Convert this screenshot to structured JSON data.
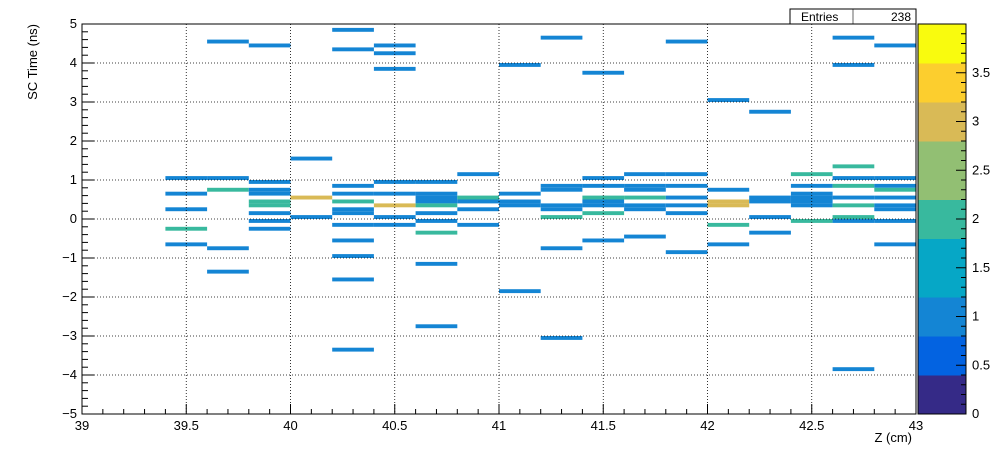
{
  "chart_data": {
    "type": "heatmap",
    "xlabel": "Z (cm)",
    "ylabel": "SC Time (ns)",
    "xlim": [
      39,
      43
    ],
    "ylim": [
      -5,
      5
    ],
    "zlim": [
      0,
      4
    ],
    "x_ticks": [
      {
        "v": 39,
        "label": "39"
      },
      {
        "v": 39.5,
        "label": "39.5"
      },
      {
        "v": 40,
        "label": "40"
      },
      {
        "v": 40.5,
        "label": "40.5"
      },
      {
        "v": 41,
        "label": "41"
      },
      {
        "v": 41.5,
        "label": "41.5"
      },
      {
        "v": 42,
        "label": "42"
      },
      {
        "v": 42.5,
        "label": "42.5"
      },
      {
        "v": 43,
        "label": "43"
      }
    ],
    "y_ticks": [
      {
        "v": -5,
        "label": "−5"
      },
      {
        "v": -4,
        "label": "−4"
      },
      {
        "v": -3,
        "label": "−3"
      },
      {
        "v": -2,
        "label": "−2"
      },
      {
        "v": -1,
        "label": "−1"
      },
      {
        "v": 0,
        "label": "0"
      },
      {
        "v": 1,
        "label": "1"
      },
      {
        "v": 2,
        "label": "2"
      },
      {
        "v": 3,
        "label": "3"
      },
      {
        "v": 4,
        "label": "4"
      },
      {
        "v": 5,
        "label": "5"
      }
    ],
    "z_ticks": [
      {
        "v": 0,
        "label": "0"
      },
      {
        "v": 0.5,
        "label": "0.5"
      },
      {
        "v": 1,
        "label": "1"
      },
      {
        "v": 1.5,
        "label": "1.5"
      },
      {
        "v": 2,
        "label": "2"
      },
      {
        "v": 2.5,
        "label": "2.5"
      },
      {
        "v": 3,
        "label": "3"
      },
      {
        "v": 3.5,
        "label": "3.5"
      }
    ],
    "grid": true,
    "palette": [
      "#352a87",
      "#0363e1",
      "#1485d4",
      "#06a7c6",
      "#38b99e",
      "#92bf73",
      "#d9ba56",
      "#fcce2e",
      "#f9fb0e"
    ],
    "stats": {
      "label": "Entries",
      "value": "238"
    },
    "bin_width": 0.2,
    "bin_height": 0.1,
    "cells": [
      {
        "x": 39.4,
        "y": 1.05,
        "z": 1
      },
      {
        "x": 39.4,
        "y": 0.65,
        "z": 1
      },
      {
        "x": 39.4,
        "y": 0.25,
        "z": 1
      },
      {
        "x": 39.4,
        "y": -0.25,
        "z": 2
      },
      {
        "x": 39.4,
        "y": -0.65,
        "z": 1
      },
      {
        "x": 39.6,
        "y": 1.05,
        "z": 1
      },
      {
        "x": 39.6,
        "y": 0.75,
        "z": 2
      },
      {
        "x": 39.6,
        "y": -0.75,
        "z": 1
      },
      {
        "x": 39.6,
        "y": -1.35,
        "z": 1
      },
      {
        "x": 39.6,
        "y": 4.55,
        "z": 1
      },
      {
        "x": 39.8,
        "y": 4.45,
        "z": 1
      },
      {
        "x": 39.8,
        "y": 0.95,
        "z": 1
      },
      {
        "x": 39.8,
        "y": 0.75,
        "z": 1
      },
      {
        "x": 39.8,
        "y": 0.65,
        "z": 1
      },
      {
        "x": 39.8,
        "y": 0.45,
        "z": 2
      },
      {
        "x": 39.8,
        "y": 0.35,
        "z": 2
      },
      {
        "x": 39.8,
        "y": 0.15,
        "z": 1
      },
      {
        "x": 39.8,
        "y": -0.05,
        "z": 1
      },
      {
        "x": 39.8,
        "y": -0.25,
        "z": 1
      },
      {
        "x": 40,
        "y": 1.55,
        "z": 1
      },
      {
        "x": 40,
        "y": 0.55,
        "z": 3
      },
      {
        "x": 40,
        "y": 0.05,
        "z": 1
      },
      {
        "x": 40.2,
        "y": 4.85,
        "z": 1
      },
      {
        "x": 40.2,
        "y": 4.35,
        "z": 1
      },
      {
        "x": 40.2,
        "y": 0.85,
        "z": 1
      },
      {
        "x": 40.2,
        "y": 0.65,
        "z": 1
      },
      {
        "x": 40.2,
        "y": 0.45,
        "z": 2
      },
      {
        "x": 40.2,
        "y": 0.25,
        "z": 1
      },
      {
        "x": 40.2,
        "y": 0.15,
        "z": 1
      },
      {
        "x": 40.2,
        "y": -0.15,
        "z": 1
      },
      {
        "x": 40.2,
        "y": -0.55,
        "z": 1
      },
      {
        "x": 40.2,
        "y": -0.95,
        "z": 1
      },
      {
        "x": 40.2,
        "y": -1.55,
        "z": 1
      },
      {
        "x": 40.2,
        "y": -3.35,
        "z": 1
      },
      {
        "x": 40.4,
        "y": 4.45,
        "z": 1
      },
      {
        "x": 40.4,
        "y": 4.25,
        "z": 1
      },
      {
        "x": 40.4,
        "y": 3.85,
        "z": 1
      },
      {
        "x": 40.4,
        "y": 0.95,
        "z": 1
      },
      {
        "x": 40.4,
        "y": 0.65,
        "z": 1
      },
      {
        "x": 40.4,
        "y": 0.35,
        "z": 3
      },
      {
        "x": 40.4,
        "y": 0.05,
        "z": 1
      },
      {
        "x": 40.4,
        "y": -0.15,
        "z": 1
      },
      {
        "x": 40.6,
        "y": 0.95,
        "z": 1
      },
      {
        "x": 40.6,
        "y": 0.65,
        "z": 1
      },
      {
        "x": 40.6,
        "y": 0.55,
        "z": 1
      },
      {
        "x": 40.6,
        "y": 0.45,
        "z": 1
      },
      {
        "x": 40.6,
        "y": 0.35,
        "z": 2
      },
      {
        "x": 40.6,
        "y": 0.15,
        "z": 1
      },
      {
        "x": 40.6,
        "y": -0.05,
        "z": 1
      },
      {
        "x": 40.6,
        "y": -0.35,
        "z": 2
      },
      {
        "x": 40.6,
        "y": -1.15,
        "z": 1
      },
      {
        "x": 40.6,
        "y": -2.75,
        "z": 1
      },
      {
        "x": 40.8,
        "y": 1.15,
        "z": 1
      },
      {
        "x": 40.8,
        "y": 0.55,
        "z": 2
      },
      {
        "x": 40.8,
        "y": 0.45,
        "z": 1
      },
      {
        "x": 40.8,
        "y": 0.25,
        "z": 1
      },
      {
        "x": 40.8,
        "y": -0.15,
        "z": 1
      },
      {
        "x": 41,
        "y": 3.95,
        "z": 1
      },
      {
        "x": 41,
        "y": 0.65,
        "z": 1
      },
      {
        "x": 41,
        "y": 0.45,
        "z": 1
      },
      {
        "x": 41,
        "y": 0.35,
        "z": 1
      },
      {
        "x": 41,
        "y": -1.85,
        "z": 1
      },
      {
        "x": 41.2,
        "y": 4.65,
        "z": 1
      },
      {
        "x": 41.2,
        "y": 0.85,
        "z": 1
      },
      {
        "x": 41.2,
        "y": 0.75,
        "z": 1
      },
      {
        "x": 41.2,
        "y": 0.35,
        "z": 1
      },
      {
        "x": 41.2,
        "y": 0.25,
        "z": 1
      },
      {
        "x": 41.2,
        "y": 0.05,
        "z": 2
      },
      {
        "x": 41.2,
        "y": -0.75,
        "z": 1
      },
      {
        "x": 41.2,
        "y": -3.05,
        "z": 1
      },
      {
        "x": 41.4,
        "y": 3.75,
        "z": 1
      },
      {
        "x": 41.4,
        "y": 1.05,
        "z": 1
      },
      {
        "x": 41.4,
        "y": 0.85,
        "z": 1
      },
      {
        "x": 41.4,
        "y": 0.55,
        "z": 2
      },
      {
        "x": 41.4,
        "y": 0.45,
        "z": 1
      },
      {
        "x": 41.4,
        "y": 0.35,
        "z": 1
      },
      {
        "x": 41.4,
        "y": 0.15,
        "z": 2
      },
      {
        "x": 41.4,
        "y": -0.55,
        "z": 1
      },
      {
        "x": 41.6,
        "y": 1.15,
        "z": 1
      },
      {
        "x": 41.6,
        "y": 0.85,
        "z": 1
      },
      {
        "x": 41.6,
        "y": 0.75,
        "z": 1
      },
      {
        "x": 41.6,
        "y": 0.55,
        "z": 2
      },
      {
        "x": 41.6,
        "y": 0.35,
        "z": 1
      },
      {
        "x": 41.6,
        "y": 0.25,
        "z": 1
      },
      {
        "x": 41.6,
        "y": -0.45,
        "z": 1
      },
      {
        "x": 41.8,
        "y": 4.55,
        "z": 1
      },
      {
        "x": 41.8,
        "y": 1.15,
        "z": 1
      },
      {
        "x": 41.8,
        "y": 0.85,
        "z": 1
      },
      {
        "x": 41.8,
        "y": 0.55,
        "z": 1
      },
      {
        "x": 41.8,
        "y": 0.35,
        "z": 1
      },
      {
        "x": 41.8,
        "y": 0.15,
        "z": 1
      },
      {
        "x": 41.8,
        "y": -0.85,
        "z": 1
      },
      {
        "x": 42,
        "y": 3.05,
        "z": 1
      },
      {
        "x": 42,
        "y": 0.75,
        "z": 1
      },
      {
        "x": 42,
        "y": 0.45,
        "z": 3
      },
      {
        "x": 42,
        "y": 0.35,
        "z": 3
      },
      {
        "x": 42,
        "y": -0.15,
        "z": 2
      },
      {
        "x": 42,
        "y": -0.65,
        "z": 1
      },
      {
        "x": 42.2,
        "y": 2.75,
        "z": 1
      },
      {
        "x": 42.2,
        "y": 0.55,
        "z": 1
      },
      {
        "x": 42.2,
        "y": 0.45,
        "z": 1
      },
      {
        "x": 42.2,
        "y": 0.05,
        "z": 1
      },
      {
        "x": 42.2,
        "y": -0.35,
        "z": 1
      },
      {
        "x": 42.4,
        "y": 1.15,
        "z": 2
      },
      {
        "x": 42.4,
        "y": 0.85,
        "z": 1
      },
      {
        "x": 42.4,
        "y": 0.65,
        "z": 1
      },
      {
        "x": 42.4,
        "y": 0.55,
        "z": 1
      },
      {
        "x": 42.4,
        "y": 0.45,
        "z": 1
      },
      {
        "x": 42.4,
        "y": 0.35,
        "z": 1
      },
      {
        "x": 42.4,
        "y": -0.05,
        "z": 2
      },
      {
        "x": 42.6,
        "y": 4.65,
        "z": 1
      },
      {
        "x": 42.6,
        "y": 3.95,
        "z": 1
      },
      {
        "x": 42.6,
        "y": 1.35,
        "z": 2
      },
      {
        "x": 42.6,
        "y": 1.05,
        "z": 1
      },
      {
        "x": 42.6,
        "y": 0.85,
        "z": 2
      },
      {
        "x": 42.6,
        "y": 0.55,
        "z": 1
      },
      {
        "x": 42.6,
        "y": 0.35,
        "z": 2
      },
      {
        "x": 42.6,
        "y": 0.05,
        "z": 2
      },
      {
        "x": 42.6,
        "y": -0.05,
        "z": 1
      },
      {
        "x": 42.6,
        "y": -3.85,
        "z": 1
      },
      {
        "x": 42.8,
        "y": 4.45,
        "z": 1
      },
      {
        "x": 42.8,
        "y": 1.05,
        "z": 1
      },
      {
        "x": 42.8,
        "y": 0.85,
        "z": 1
      },
      {
        "x": 42.8,
        "y": 0.75,
        "z": 2
      },
      {
        "x": 42.8,
        "y": 0.55,
        "z": 1
      },
      {
        "x": 42.8,
        "y": 0.35,
        "z": 1
      },
      {
        "x": 42.8,
        "y": 0.25,
        "z": 1
      },
      {
        "x": 42.8,
        "y": -0.05,
        "z": 1
      },
      {
        "x": 42.8,
        "y": -0.65,
        "z": 1
      }
    ]
  }
}
